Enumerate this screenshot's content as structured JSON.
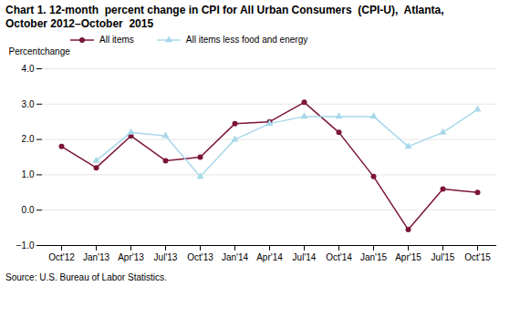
{
  "chart_data": {
    "type": "line",
    "title": "Chart 1. 12-month  percent change in CPI for All Urban Consumers  (CPI-U),  Atlanta,",
    "subtitle": "October 2012–October  2015",
    "ylabel": "Percentchange",
    "source": "Source: U.S. Bureau of Labor Statistics.",
    "categories": [
      "Oct'12",
      "Jan'13",
      "Apr'13",
      "Jul'13",
      "Oct'13",
      "Jan'14",
      "Apr'14",
      "Jul'14",
      "Oct'14",
      "Jan'15",
      "Apr'15",
      "Jul'15",
      "Oct'15"
    ],
    "series": [
      {
        "name": "All items",
        "color": "#7B1538",
        "marker": "circle",
        "values": [
          1.8,
          1.2,
          2.1,
          1.4,
          1.5,
          2.45,
          2.5,
          3.05,
          2.2,
          0.95,
          -0.55,
          0.6,
          0.5
        ]
      },
      {
        "name": "All items less food and energy",
        "color": "#A8D8EA",
        "marker": "triangle",
        "values": [
          null,
          1.4,
          2.2,
          2.1,
          0.95,
          2.0,
          2.45,
          2.65,
          2.65,
          2.65,
          1.8,
          2.2,
          2.85
        ]
      }
    ],
    "ylim": [
      -1,
      4
    ],
    "yticks": [
      -1,
      0,
      1,
      2,
      3,
      4
    ],
    "grid": true,
    "legend": "upper left"
  }
}
